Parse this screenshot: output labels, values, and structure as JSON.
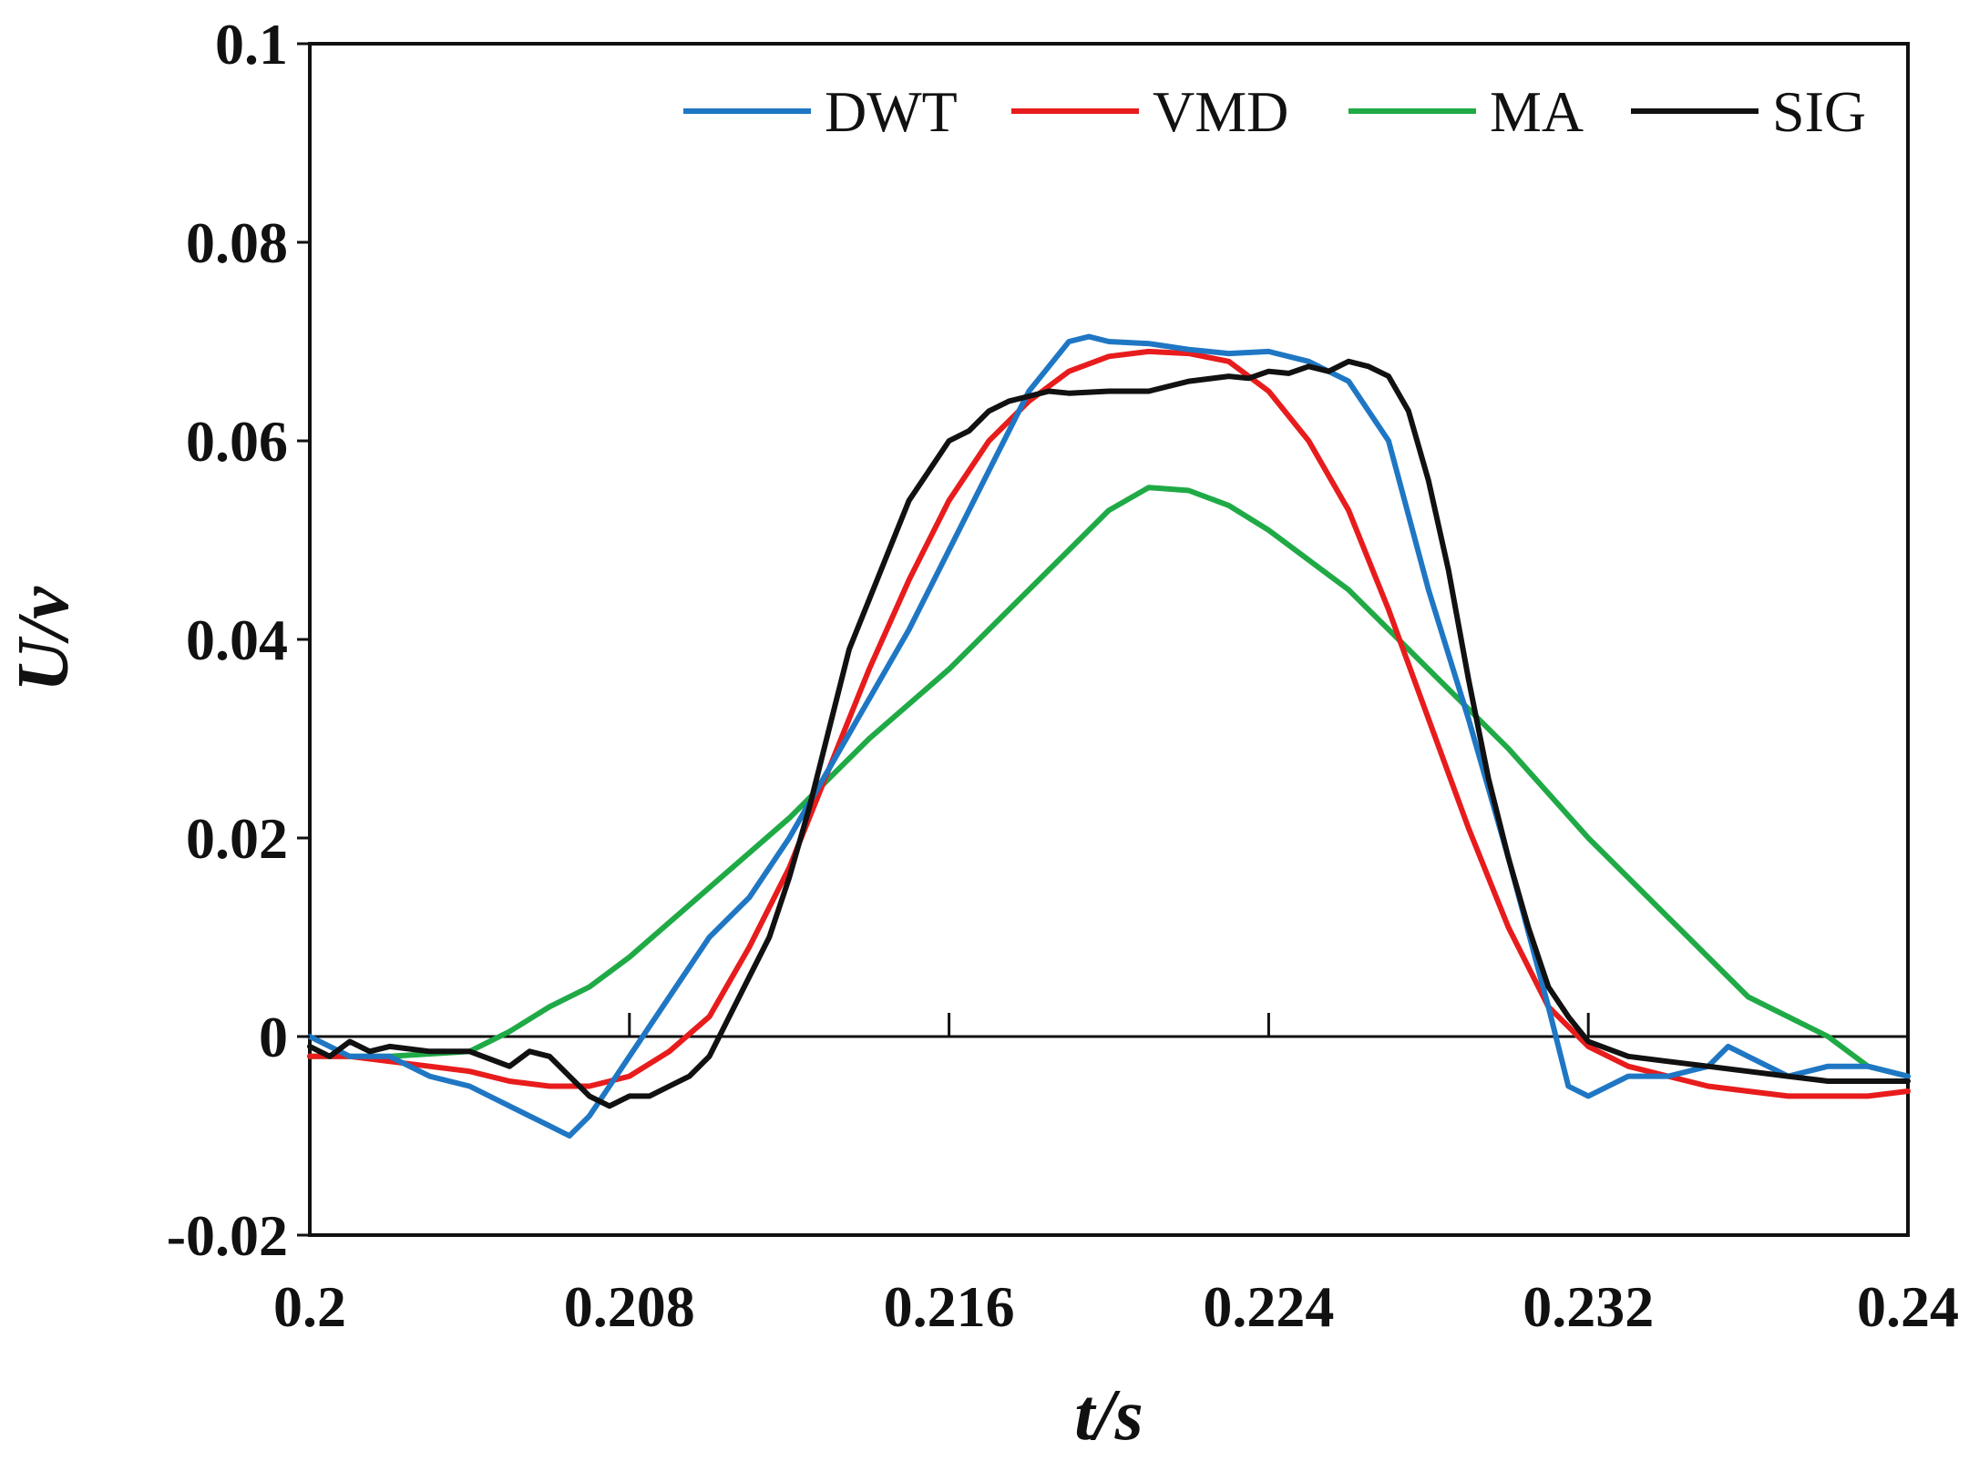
{
  "chart_data": {
    "type": "line",
    "title": "",
    "xlabel": "t/s",
    "ylabel": "U/v",
    "xlim": [
      0.2,
      0.24
    ],
    "ylim": [
      -0.02,
      0.1
    ],
    "x_ticks": [
      0.2,
      0.208,
      0.216,
      0.224,
      0.232,
      0.24
    ],
    "x_tick_labels": [
      "0.2",
      "0.208",
      "0.216",
      "0.224",
      "0.232",
      "0.24"
    ],
    "y_ticks": [
      -0.02,
      0,
      0.02,
      0.04,
      0.06,
      0.08,
      0.1
    ],
    "y_tick_labels": [
      "-0.02",
      "0",
      "0.02",
      "0.04",
      "0.06",
      "0.08",
      "0.1"
    ],
    "grid": false,
    "zero_line": true,
    "legend_position": "top-right",
    "series": [
      {
        "name": "DWT",
        "color": "#1f77c4",
        "x": [
          0.2,
          0.201,
          0.202,
          0.203,
          0.204,
          0.205,
          0.206,
          0.2065,
          0.207,
          0.2075,
          0.208,
          0.2085,
          0.209,
          0.21,
          0.211,
          0.212,
          0.213,
          0.214,
          0.215,
          0.216,
          0.217,
          0.218,
          0.219,
          0.2195,
          0.22,
          0.221,
          0.222,
          0.223,
          0.224,
          0.225,
          0.226,
          0.227,
          0.228,
          0.229,
          0.23,
          0.231,
          0.2315,
          0.232,
          0.2325,
          0.233,
          0.234,
          0.235,
          0.2355,
          0.236,
          0.237,
          0.238,
          0.239,
          0.24
        ],
        "y": [
          0,
          -0.002,
          -0.002,
          -0.004,
          -0.005,
          -0.007,
          -0.009,
          -0.01,
          -0.008,
          -0.005,
          -0.002,
          0.001,
          0.004,
          0.01,
          0.014,
          0.02,
          0.027,
          0.034,
          0.041,
          0.049,
          0.057,
          0.065,
          0.07,
          0.0705,
          0.07,
          0.0698,
          0.0692,
          0.0688,
          0.069,
          0.068,
          0.066,
          0.06,
          0.045,
          0.032,
          0.018,
          0.003,
          -0.005,
          -0.006,
          -0.005,
          -0.004,
          -0.004,
          -0.003,
          -0.001,
          -0.002,
          -0.004,
          -0.003,
          -0.003,
          -0.004
        ]
      },
      {
        "name": "VMD",
        "color": "#e81c1c",
        "x": [
          0.2,
          0.201,
          0.202,
          0.203,
          0.204,
          0.205,
          0.206,
          0.207,
          0.208,
          0.209,
          0.21,
          0.211,
          0.212,
          0.213,
          0.214,
          0.215,
          0.216,
          0.217,
          0.218,
          0.219,
          0.22,
          0.221,
          0.222,
          0.223,
          0.224,
          0.225,
          0.226,
          0.227,
          0.228,
          0.229,
          0.23,
          0.231,
          0.232,
          0.233,
          0.234,
          0.235,
          0.236,
          0.237,
          0.238,
          0.239,
          0.24
        ],
        "y": [
          -0.002,
          -0.002,
          -0.0025,
          -0.003,
          -0.0035,
          -0.0045,
          -0.005,
          -0.005,
          -0.004,
          -0.0015,
          0.002,
          0.009,
          0.017,
          0.027,
          0.037,
          0.046,
          0.054,
          0.06,
          0.064,
          0.067,
          0.0685,
          0.069,
          0.0688,
          0.068,
          0.065,
          0.06,
          0.053,
          0.043,
          0.032,
          0.021,
          0.011,
          0.003,
          -0.001,
          -0.003,
          -0.004,
          -0.005,
          -0.0055,
          -0.006,
          -0.006,
          -0.006,
          -0.0055
        ]
      },
      {
        "name": "MA",
        "color": "#1faa46",
        "x": [
          0.2,
          0.202,
          0.204,
          0.205,
          0.206,
          0.207,
          0.208,
          0.21,
          0.212,
          0.214,
          0.216,
          0.218,
          0.219,
          0.22,
          0.221,
          0.222,
          0.223,
          0.224,
          0.226,
          0.228,
          0.23,
          0.232,
          0.234,
          0.236,
          0.237,
          0.238,
          0.239,
          0.24
        ],
        "y": [
          -0.002,
          -0.002,
          -0.0015,
          0.0005,
          0.003,
          0.005,
          0.008,
          0.015,
          0.022,
          0.03,
          0.037,
          0.045,
          0.049,
          0.053,
          0.0553,
          0.055,
          0.0535,
          0.051,
          0.045,
          0.037,
          0.029,
          0.02,
          0.012,
          0.004,
          0.002,
          0,
          -0.003,
          -0.004
        ]
      },
      {
        "name": "SIG",
        "color": "#111111",
        "x": [
          0.2,
          0.2005,
          0.201,
          0.2015,
          0.202,
          0.203,
          0.204,
          0.205,
          0.2055,
          0.206,
          0.2065,
          0.207,
          0.2075,
          0.208,
          0.2085,
          0.209,
          0.2095,
          0.21,
          0.2105,
          0.211,
          0.2115,
          0.212,
          0.2125,
          0.213,
          0.2135,
          0.214,
          0.2145,
          0.215,
          0.2155,
          0.216,
          0.2165,
          0.217,
          0.2175,
          0.218,
          0.2185,
          0.219,
          0.22,
          0.221,
          0.222,
          0.223,
          0.2235,
          0.224,
          0.2245,
          0.225,
          0.2255,
          0.226,
          0.2265,
          0.227,
          0.2275,
          0.228,
          0.2285,
          0.229,
          0.2295,
          0.23,
          0.2305,
          0.231,
          0.2315,
          0.232,
          0.233,
          0.234,
          0.235,
          0.236,
          0.237,
          0.238,
          0.239,
          0.24
        ],
        "y": [
          -0.001,
          -0.002,
          -0.0005,
          -0.0015,
          -0.001,
          -0.0015,
          -0.0015,
          -0.003,
          -0.0015,
          -0.002,
          -0.004,
          -0.006,
          -0.007,
          -0.006,
          -0.006,
          -0.005,
          -0.004,
          -0.002,
          0.002,
          0.006,
          0.01,
          0.016,
          0.023,
          0.031,
          0.039,
          0.044,
          0.049,
          0.054,
          0.057,
          0.06,
          0.061,
          0.063,
          0.064,
          0.0645,
          0.065,
          0.0648,
          0.065,
          0.065,
          0.066,
          0.0665,
          0.0663,
          0.067,
          0.0668,
          0.0675,
          0.067,
          0.068,
          0.0675,
          0.0665,
          0.063,
          0.056,
          0.047,
          0.036,
          0.026,
          0.018,
          0.011,
          0.005,
          0.002,
          -0.0005,
          -0.002,
          -0.0025,
          -0.003,
          -0.0035,
          -0.004,
          -0.0045,
          -0.0045,
          -0.0045
        ]
      }
    ]
  }
}
